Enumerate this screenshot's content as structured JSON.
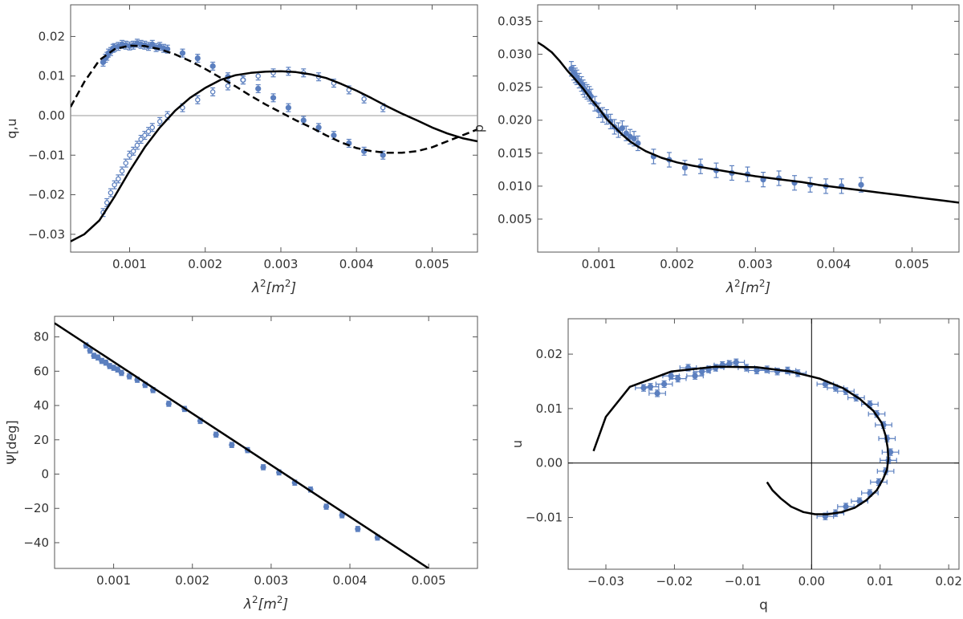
{
  "chart_data": [
    {
      "type": "scatter",
      "xlabel_base": "λ",
      "xlabel_sup": "2",
      "xlabel_unit": "[m",
      "xlabel_unit_sup": "2",
      "xlabel_close": "]",
      "ylabel": "q,u",
      "xlim": [
        0.00022,
        0.0056
      ],
      "ylim": [
        -0.0345,
        0.028
      ],
      "xticks": [
        0.001,
        0.002,
        0.003,
        0.004,
        0.005
      ],
      "xtick_labels": [
        "0.001",
        "0.002",
        "0.003",
        "0.004",
        "0.005"
      ],
      "yticks": [
        -0.03,
        -0.02,
        -0.01,
        0.0,
        0.01,
        0.02
      ],
      "ytick_labels": [
        "−0.03",
        "−0.02",
        "−0.01",
        "0.00",
        "0.01",
        "0.02"
      ],
      "zero_line": true,
      "series": [
        {
          "style": "filled-points",
          "color": "#5b7fbf",
          "x": [
            0.00065,
            0.00068,
            0.0007,
            0.00072,
            0.00075,
            0.00078,
            0.0008,
            0.00085,
            0.0009,
            0.00095,
            0.001,
            0.00105,
            0.0011,
            0.00115,
            0.0012,
            0.00125,
            0.0013,
            0.00135,
            0.0014,
            0.00145,
            0.0015,
            0.0017,
            0.0019,
            0.0021,
            0.0023,
            0.0025,
            0.0027,
            0.0029,
            0.0031,
            0.0033,
            0.0035,
            0.0037,
            0.0039,
            0.0041,
            0.00435
          ],
          "y": [
            0.0135,
            0.0145,
            0.015,
            0.0158,
            0.0162,
            0.017,
            0.0172,
            0.0175,
            0.018,
            0.0178,
            0.0176,
            0.0178,
            0.0183,
            0.018,
            0.0178,
            0.0175,
            0.018,
            0.0172,
            0.0175,
            0.017,
            0.0168,
            0.0158,
            0.0145,
            0.0125,
            0.0098,
            0.009,
            0.0068,
            0.0045,
            0.002,
            -0.0012,
            -0.003,
            -0.005,
            -0.007,
            -0.009,
            -0.01
          ],
          "yerr": 0.001
        },
        {
          "style": "open-points",
          "color": "#5b7fbf",
          "x": [
            0.00065,
            0.0007,
            0.00075,
            0.0008,
            0.00085,
            0.0009,
            0.00095,
            0.001,
            0.00105,
            0.0011,
            0.00115,
            0.0012,
            0.00125,
            0.0013,
            0.0014,
            0.0015,
            0.0017,
            0.0019,
            0.0021,
            0.0023,
            0.0025,
            0.0027,
            0.0029,
            0.0031,
            0.0033,
            0.0035,
            0.0037,
            0.0039,
            0.0041,
            0.00435
          ],
          "y": [
            -0.0245,
            -0.022,
            -0.0195,
            -0.0175,
            -0.016,
            -0.014,
            -0.012,
            -0.01,
            -0.009,
            -0.0075,
            -0.006,
            -0.005,
            -0.004,
            -0.003,
            -0.0015,
            0.0,
            0.002,
            0.004,
            0.006,
            0.0075,
            0.009,
            0.01,
            0.0108,
            0.0112,
            0.0108,
            0.0098,
            0.0082,
            0.0065,
            0.0042,
            0.002
          ],
          "yerr": 0.001
        },
        {
          "style": "solid-line",
          "color": "#000000",
          "x": [
            0.00022,
            0.0004,
            0.0006,
            0.0008,
            0.001,
            0.0012,
            0.0014,
            0.0016,
            0.0018,
            0.002,
            0.0022,
            0.0024,
            0.0026,
            0.0028,
            0.003,
            0.0032,
            0.0034,
            0.0036,
            0.0038,
            0.004,
            0.0042,
            0.0044,
            0.0046,
            0.0048,
            0.005,
            0.0052,
            0.0054,
            0.0056
          ],
          "y": [
            -0.0318,
            -0.03,
            -0.0265,
            -0.0205,
            -0.014,
            -0.008,
            -0.003,
            0.0012,
            0.0045,
            0.007,
            0.009,
            0.0102,
            0.0108,
            0.0111,
            0.0112,
            0.011,
            0.0104,
            0.0095,
            0.008,
            0.0063,
            0.0044,
            0.0024,
            0.0005,
            -0.0012,
            -0.003,
            -0.0045,
            -0.0057,
            -0.0065
          ]
        },
        {
          "style": "dashed-line",
          "color": "#000000",
          "x": [
            0.00022,
            0.0004,
            0.0006,
            0.0008,
            0.001,
            0.0012,
            0.0014,
            0.0016,
            0.0018,
            0.002,
            0.0022,
            0.0024,
            0.0026,
            0.0028,
            0.003,
            0.0032,
            0.0034,
            0.0036,
            0.0038,
            0.004,
            0.0042,
            0.0044,
            0.0046,
            0.0048,
            0.005,
            0.0052,
            0.0054,
            0.0056
          ],
          "y": [
            0.0022,
            0.0085,
            0.014,
            0.0168,
            0.0177,
            0.0176,
            0.0168,
            0.0155,
            0.0138,
            0.0118,
            0.0096,
            0.0074,
            0.005,
            0.0028,
            0.0008,
            -0.0012,
            -0.003,
            -0.005,
            -0.0068,
            -0.0082,
            -0.009,
            -0.0094,
            -0.0094,
            -0.009,
            -0.008,
            -0.0065,
            -0.005,
            -0.0035
          ]
        }
      ]
    },
    {
      "type": "scatter",
      "xlabel_base": "λ",
      "xlabel_sup": "2",
      "xlabel_unit": "[m",
      "xlabel_unit_sup": "2",
      "xlabel_close": "]",
      "ylabel": "p",
      "xlim": [
        0.00022,
        0.0056
      ],
      "ylim": [
        0.0,
        0.0375
      ],
      "xticks": [
        0.001,
        0.002,
        0.003,
        0.004,
        0.005
      ],
      "xtick_labels": [
        "0.001",
        "0.002",
        "0.003",
        "0.004",
        "0.005"
      ],
      "yticks": [
        0.005,
        0.01,
        0.015,
        0.02,
        0.025,
        0.03,
        0.035
      ],
      "ytick_labels": [
        "0.005",
        "0.010",
        "0.015",
        "0.020",
        "0.025",
        "0.030",
        "0.035"
      ],
      "zero_line": false,
      "series": [
        {
          "style": "filled-points",
          "color": "#5b7fbf",
          "x": [
            0.00065,
            0.00068,
            0.0007,
            0.00072,
            0.00075,
            0.00078,
            0.0008,
            0.00082,
            0.00085,
            0.00088,
            0.0009,
            0.00095,
            0.001,
            0.00105,
            0.0011,
            0.00115,
            0.0012,
            0.00125,
            0.0013,
            0.00135,
            0.0014,
            0.00145,
            0.0015,
            0.0017,
            0.0019,
            0.0021,
            0.0023,
            0.0025,
            0.0027,
            0.0029,
            0.0031,
            0.0033,
            0.0035,
            0.0037,
            0.0039,
            0.0041,
            0.00435
          ],
          "y": [
            0.0278,
            0.0272,
            0.0268,
            0.0265,
            0.026,
            0.0255,
            0.025,
            0.0246,
            0.0243,
            0.024,
            0.0236,
            0.0225,
            0.0215,
            0.0208,
            0.0205,
            0.0198,
            0.019,
            0.0185,
            0.0188,
            0.018,
            0.0175,
            0.0172,
            0.0165,
            0.0145,
            0.014,
            0.0128,
            0.013,
            0.0124,
            0.012,
            0.0118,
            0.011,
            0.0112,
            0.0105,
            0.0102,
            0.01,
            0.01,
            0.0102
          ],
          "yerr": 0.0011
        },
        {
          "style": "solid-line",
          "color": "#000000",
          "x": [
            0.00022,
            0.0003,
            0.0004,
            0.0005,
            0.0006,
            0.0007,
            0.0008,
            0.0009,
            0.001,
            0.0011,
            0.0012,
            0.0013,
            0.0014,
            0.0015,
            0.0016,
            0.0018,
            0.002,
            0.0022,
            0.0024,
            0.0026,
            0.0028,
            0.003,
            0.0032,
            0.0034,
            0.0036,
            0.0038,
            0.004,
            0.0042,
            0.0044,
            0.0046,
            0.0048,
            0.005,
            0.0052,
            0.0054,
            0.0056
          ],
          "y": [
            0.0318,
            0.0312,
            0.0303,
            0.029,
            0.0275,
            0.0262,
            0.0248,
            0.0232,
            0.0218,
            0.0202,
            0.019,
            0.0178,
            0.0168,
            0.016,
            0.0153,
            0.0143,
            0.0136,
            0.0131,
            0.0127,
            0.0123,
            0.0119,
            0.0115,
            0.0112,
            0.0109,
            0.0106,
            0.0102,
            0.0099,
            0.0096,
            0.0093,
            0.009,
            0.0087,
            0.0084,
            0.0081,
            0.0078,
            0.0075
          ]
        }
      ]
    },
    {
      "type": "scatter",
      "xlabel_base": "λ",
      "xlabel_sup": "2",
      "xlabel_unit": "[m",
      "xlabel_unit_sup": "2",
      "xlabel_close": "]",
      "ylabel": "Ψ[deg]",
      "xlim": [
        0.00025,
        0.00562
      ],
      "ylim": [
        -55,
        92
      ],
      "xticks": [
        0.001,
        0.002,
        0.003,
        0.004,
        0.005
      ],
      "xtick_labels": [
        "0.001",
        "0.002",
        "0.003",
        "0.004",
        "0.005"
      ],
      "yticks": [
        -40,
        -20,
        0,
        20,
        40,
        60,
        80
      ],
      "ytick_labels": [
        "−40",
        "−20",
        "0",
        "20",
        "40",
        "60",
        "80"
      ],
      "zero_line": false,
      "series": [
        {
          "style": "filled-points",
          "color": "#5b7fbf",
          "x": [
            0.00065,
            0.0007,
            0.00075,
            0.0008,
            0.00085,
            0.0009,
            0.00095,
            0.001,
            0.00105,
            0.0011,
            0.0012,
            0.0013,
            0.0014,
            0.0015,
            0.0017,
            0.0019,
            0.0021,
            0.0023,
            0.0025,
            0.0027,
            0.0029,
            0.0031,
            0.0033,
            0.0035,
            0.0037,
            0.0039,
            0.0041,
            0.00435
          ],
          "y": [
            75,
            72,
            69,
            68,
            66,
            65,
            63,
            62,
            61,
            59,
            57,
            55,
            52,
            49,
            41,
            38,
            31,
            23,
            17,
            14,
            4,
            1,
            -5,
            -9,
            -19,
            -24,
            -32,
            -37
          ],
          "yerr": 1.5
        },
        {
          "style": "solid-line",
          "color": "#000000",
          "x": [
            0.00025,
            0.005
          ],
          "y": [
            88,
            -55
          ]
        }
      ]
    },
    {
      "type": "scatter",
      "xlabel": "q",
      "ylabel": "u",
      "xlim": [
        -0.0355,
        0.0215
      ],
      "ylim": [
        -0.0195,
        0.0265
      ],
      "xticks": [
        -0.03,
        -0.02,
        -0.01,
        0.0,
        0.01,
        0.02
      ],
      "xtick_labels": [
        "−0.03",
        "−0.02",
        "−0.01",
        "0.00",
        "0.01",
        "0.02"
      ],
      "yticks": [
        -0.01,
        0.0,
        0.01,
        0.02
      ],
      "ytick_labels": [
        "−0.01",
        "0.00",
        "0.01",
        "0.02"
      ],
      "zero_line": true,
      "axis_cross": true,
      "series": [
        {
          "style": "filled-points",
          "color": "#5b7fbf",
          "x": [
            -0.0245,
            -0.0235,
            -0.0225,
            -0.0215,
            -0.0205,
            -0.0195,
            -0.018,
            -0.017,
            -0.016,
            -0.015,
            -0.014,
            -0.013,
            -0.012,
            -0.011,
            -0.0095,
            -0.008,
            -0.0065,
            -0.005,
            -0.0035,
            -0.002,
            0.002,
            0.0035,
            0.005,
            0.0065,
            0.0085,
            0.0095,
            0.0105,
            0.011,
            0.0115,
            0.0112,
            0.0108,
            0.0098,
            0.0085,
            0.007,
            0.005,
            0.0035,
            0.002
          ],
          "y": [
            0.0138,
            0.014,
            0.0128,
            0.0145,
            0.016,
            0.0155,
            0.0175,
            0.016,
            0.0168,
            0.0172,
            0.0175,
            0.018,
            0.0182,
            0.0185,
            0.0175,
            0.017,
            0.0172,
            0.0168,
            0.017,
            0.0165,
            0.0145,
            0.0138,
            0.0132,
            0.012,
            0.0108,
            0.009,
            0.007,
            0.0045,
            0.002,
            0.0005,
            -0.0015,
            -0.0035,
            -0.0055,
            -0.007,
            -0.008,
            -0.0092,
            -0.0098
          ],
          "xerr": 0.0012,
          "yerr": 0.0006
        },
        {
          "style": "solid-line",
          "color": "#000000",
          "x": [
            -0.0318,
            -0.03,
            -0.0265,
            -0.0205,
            -0.014,
            -0.008,
            -0.003,
            0.0012,
            0.0045,
            0.007,
            0.009,
            0.0102,
            0.0108,
            0.0111,
            0.0112,
            0.011,
            0.0104,
            0.0095,
            0.008,
            0.0063,
            0.0044,
            0.0024,
            0.0005,
            -0.0012,
            -0.003,
            -0.0045,
            -0.0057,
            -0.0065
          ],
          "y": [
            0.0022,
            0.0085,
            0.014,
            0.0168,
            0.0177,
            0.0176,
            0.0168,
            0.0155,
            0.0138,
            0.0118,
            0.0096,
            0.0074,
            0.005,
            0.0028,
            0.0008,
            -0.0012,
            -0.003,
            -0.005,
            -0.0068,
            -0.0082,
            -0.009,
            -0.0094,
            -0.0094,
            -0.009,
            -0.008,
            -0.0065,
            -0.005,
            -0.0035
          ]
        }
      ]
    }
  ]
}
